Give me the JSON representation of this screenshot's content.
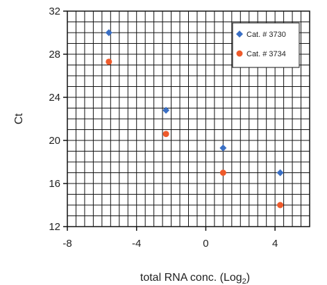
{
  "chart_data": {
    "type": "scatter",
    "title": "",
    "xlabel": "total RNA conc. (Log",
    "xlabel_sub": "2",
    "xlabel_close": ")",
    "ylabel": "Ct",
    "xlim": [
      -8,
      6
    ],
    "ylim": [
      12,
      32
    ],
    "x_ticks": [
      "-8",
      "-4",
      "0",
      "4"
    ],
    "x_tick_values": [
      -8,
      -4,
      0,
      4
    ],
    "y_ticks": [
      "32",
      "28",
      "24",
      "20",
      "16",
      "12"
    ],
    "y_tick_values": [
      32,
      28,
      24,
      20,
      16,
      12
    ],
    "grid": true,
    "legend_position": "top-right",
    "series": [
      {
        "name": "Cat. # 3730",
        "marker": "diamond",
        "color": "#3a6fc4",
        "points": [
          {
            "x": -5.6,
            "y": 30.0
          },
          {
            "x": -2.3,
            "y": 22.8
          },
          {
            "x": 1.0,
            "y": 19.3
          },
          {
            "x": 4.3,
            "y": 17.0
          }
        ]
      },
      {
        "name": "Cat. # 3734",
        "marker": "circle",
        "color": "#ee5a2b",
        "points": [
          {
            "x": -5.6,
            "y": 27.3
          },
          {
            "x": -2.3,
            "y": 20.6
          },
          {
            "x": 1.0,
            "y": 17.0
          },
          {
            "x": 4.3,
            "y": 14.0
          }
        ]
      }
    ]
  }
}
